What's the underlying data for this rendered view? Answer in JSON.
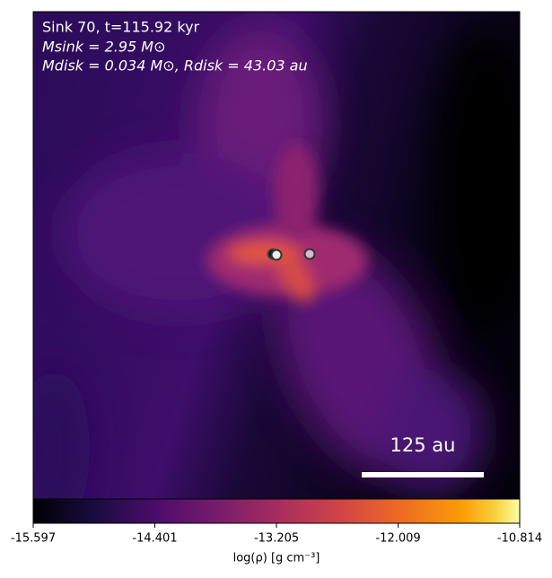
{
  "chart_data": {
    "type": "image",
    "annotations": [
      "Sink 70, t=115.92 kyr",
      "Msink = 2.95 M⊙",
      "Mdisk = 0.034 M⊙, Rdisk = 43.03 au"
    ],
    "scale_bar_label": "125 au",
    "colorbar": {
      "label": "log(ρ) [g cm⁻³]",
      "lim": [
        -15.597,
        -10.814
      ],
      "ticks": [
        -15.597,
        -14.401,
        -13.205,
        -12.009,
        -10.814
      ],
      "colormap": "inferno"
    }
  }
}
